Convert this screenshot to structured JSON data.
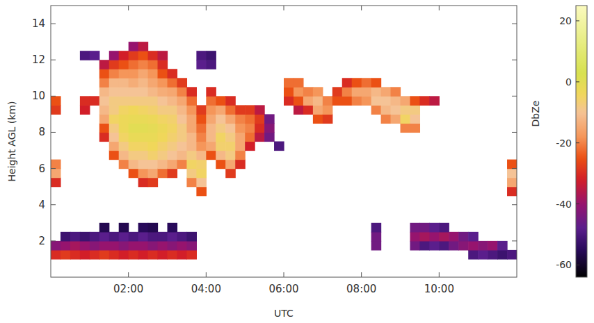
{
  "chart_data": {
    "type": "heatmap",
    "x_label": "UTC",
    "y_label": "Height AGL (km)",
    "xlim": [
      0,
      12
    ],
    "xticks": [
      {
        "value": 2,
        "label": "02:00"
      },
      {
        "value": 4,
        "label": "04:00"
      },
      {
        "value": 6,
        "label": "06:00"
      },
      {
        "value": 8,
        "label": "08:00"
      },
      {
        "value": 10,
        "label": "10:00"
      }
    ],
    "ylim": [
      0,
      15
    ],
    "yticks": [
      2,
      4,
      6,
      8,
      10,
      12,
      14
    ],
    "colorbar": {
      "label": "DbZe",
      "range": [
        -64,
        25
      ],
      "ticks": [
        20,
        0,
        -20,
        -40,
        -60
      ]
    },
    "cells": [
      [
        0.125,
        1.25,
        -30
      ],
      [
        0.125,
        1.75,
        -42
      ],
      [
        0.125,
        5.25,
        -30
      ],
      [
        0.125,
        5.75,
        -15
      ],
      [
        0.125,
        6.25,
        -20
      ],
      [
        0.125,
        9.25,
        -28
      ],
      [
        0.125,
        9.75,
        -25
      ],
      [
        0.375,
        1.25,
        -28
      ],
      [
        0.375,
        1.75,
        -40
      ],
      [
        0.375,
        2.25,
        -52
      ],
      [
        0.625,
        1.25,
        -30
      ],
      [
        0.625,
        1.75,
        -38
      ],
      [
        0.625,
        2.25,
        -50
      ],
      [
        0.875,
        1.25,
        -32
      ],
      [
        0.875,
        1.75,
        -40
      ],
      [
        0.875,
        2.25,
        -52
      ],
      [
        0.875,
        9.25,
        -32
      ],
      [
        0.875,
        9.75,
        -30
      ],
      [
        0.875,
        12.25,
        -50
      ],
      [
        1.125,
        1.25,
        -30
      ],
      [
        1.125,
        1.75,
        -42
      ],
      [
        1.125,
        2.25,
        -50
      ],
      [
        1.125,
        9.75,
        -30
      ],
      [
        1.125,
        12.25,
        -48
      ],
      [
        1.375,
        1.25,
        -28
      ],
      [
        1.375,
        1.75,
        -40
      ],
      [
        1.375,
        2.25,
        -48
      ],
      [
        1.375,
        2.75,
        -56
      ],
      [
        1.375,
        7.75,
        -30
      ],
      [
        1.375,
        8.25,
        -25
      ],
      [
        1.375,
        8.75,
        -15
      ],
      [
        1.375,
        9.25,
        -12
      ],
      [
        1.375,
        9.75,
        -10
      ],
      [
        1.375,
        10.25,
        -12
      ],
      [
        1.375,
        10.75,
        -20
      ],
      [
        1.375,
        11.25,
        -25
      ],
      [
        1.375,
        11.75,
        -35
      ],
      [
        1.625,
        1.25,
        -30
      ],
      [
        1.625,
        1.75,
        -40
      ],
      [
        1.625,
        2.25,
        -50
      ],
      [
        1.625,
        6.75,
        -25
      ],
      [
        1.625,
        7.25,
        -15
      ],
      [
        1.625,
        7.75,
        -10
      ],
      [
        1.625,
        8.25,
        -8
      ],
      [
        1.625,
        8.75,
        -5
      ],
      [
        1.625,
        9.25,
        -8
      ],
      [
        1.625,
        9.75,
        -8
      ],
      [
        1.625,
        10.25,
        -10
      ],
      [
        1.625,
        10.75,
        -12
      ],
      [
        1.625,
        11.25,
        -20
      ],
      [
        1.625,
        11.75,
        -28
      ],
      [
        1.625,
        12.25,
        -40
      ],
      [
        1.875,
        1.25,
        -32
      ],
      [
        1.875,
        1.75,
        -42
      ],
      [
        1.875,
        2.25,
        -48
      ],
      [
        1.875,
        2.75,
        -56
      ],
      [
        1.875,
        6.25,
        -20
      ],
      [
        1.875,
        6.75,
        -12
      ],
      [
        1.875,
        7.25,
        -8
      ],
      [
        1.875,
        7.75,
        -5
      ],
      [
        1.875,
        8.25,
        -3
      ],
      [
        1.875,
        8.75,
        -3
      ],
      [
        1.875,
        9.25,
        -5
      ],
      [
        1.875,
        9.75,
        -8
      ],
      [
        1.875,
        10.25,
        -10
      ],
      [
        1.875,
        10.75,
        -12
      ],
      [
        1.875,
        11.25,
        -18
      ],
      [
        1.875,
        11.75,
        -25
      ],
      [
        1.875,
        12.25,
        -32
      ],
      [
        2.125,
        1.25,
        -30
      ],
      [
        2.125,
        1.75,
        -40
      ],
      [
        2.125,
        2.25,
        -50
      ],
      [
        2.125,
        5.75,
        -25
      ],
      [
        2.125,
        6.25,
        -12
      ],
      [
        2.125,
        6.75,
        -8
      ],
      [
        2.125,
        7.25,
        -5
      ],
      [
        2.125,
        7.75,
        -2
      ],
      [
        2.125,
        8.25,
        0
      ],
      [
        2.125,
        8.75,
        -2
      ],
      [
        2.125,
        9.25,
        -4
      ],
      [
        2.125,
        9.75,
        -8
      ],
      [
        2.125,
        10.25,
        -10
      ],
      [
        2.125,
        10.75,
        -14
      ],
      [
        2.125,
        11.25,
        -18
      ],
      [
        2.125,
        11.75,
        -22
      ],
      [
        2.125,
        12.25,
        -28
      ],
      [
        2.125,
        12.75,
        -40
      ],
      [
        2.375,
        1.25,
        -32
      ],
      [
        2.375,
        1.75,
        -40
      ],
      [
        2.375,
        2.25,
        -48
      ],
      [
        2.375,
        2.75,
        -55
      ],
      [
        2.375,
        5.25,
        -30
      ],
      [
        2.375,
        5.75,
        -18
      ],
      [
        2.375,
        6.25,
        -10
      ],
      [
        2.375,
        6.75,
        -8
      ],
      [
        2.375,
        7.25,
        -5
      ],
      [
        2.375,
        7.75,
        -2
      ],
      [
        2.375,
        8.25,
        0
      ],
      [
        2.375,
        8.75,
        -2
      ],
      [
        2.375,
        9.25,
        -5
      ],
      [
        2.375,
        9.75,
        -8
      ],
      [
        2.375,
        10.25,
        -10
      ],
      [
        2.375,
        10.75,
        -12
      ],
      [
        2.375,
        11.25,
        -15
      ],
      [
        2.375,
        11.75,
        -20
      ],
      [
        2.375,
        12.25,
        -25
      ],
      [
        2.375,
        12.75,
        -35
      ],
      [
        2.625,
        1.25,
        -30
      ],
      [
        2.625,
        1.75,
        -42
      ],
      [
        2.625,
        2.25,
        -50
      ],
      [
        2.625,
        2.75,
        -56
      ],
      [
        2.625,
        5.25,
        -28
      ],
      [
        2.625,
        5.75,
        -15
      ],
      [
        2.625,
        6.25,
        -10
      ],
      [
        2.625,
        6.75,
        -6
      ],
      [
        2.625,
        7.25,
        -4
      ],
      [
        2.625,
        7.75,
        -2
      ],
      [
        2.625,
        8.25,
        -1
      ],
      [
        2.625,
        8.75,
        -3
      ],
      [
        2.625,
        9.25,
        -6
      ],
      [
        2.625,
        9.75,
        -8
      ],
      [
        2.625,
        10.25,
        -12
      ],
      [
        2.625,
        10.75,
        -15
      ],
      [
        2.625,
        11.25,
        -18
      ],
      [
        2.625,
        11.75,
        -22
      ],
      [
        2.625,
        12.25,
        -30
      ],
      [
        2.875,
        1.25,
        -32
      ],
      [
        2.875,
        1.75,
        -40
      ],
      [
        2.875,
        2.25,
        -50
      ],
      [
        2.875,
        5.75,
        -22
      ],
      [
        2.875,
        6.25,
        -12
      ],
      [
        2.875,
        6.75,
        -8
      ],
      [
        2.875,
        7.25,
        -6
      ],
      [
        2.875,
        7.75,
        -4
      ],
      [
        2.875,
        8.25,
        -3
      ],
      [
        2.875,
        8.75,
        -5
      ],
      [
        2.875,
        9.25,
        -8
      ],
      [
        2.875,
        9.75,
        -10
      ],
      [
        2.875,
        10.25,
        -14
      ],
      [
        2.875,
        10.75,
        -18
      ],
      [
        2.875,
        11.25,
        -25
      ],
      [
        2.875,
        11.75,
        -30
      ],
      [
        2.875,
        12.25,
        -35
      ],
      [
        3.125,
        1.25,
        -30
      ],
      [
        3.125,
        1.75,
        -42
      ],
      [
        3.125,
        2.25,
        -48
      ],
      [
        3.125,
        2.75,
        -55
      ],
      [
        3.125,
        5.75,
        -28
      ],
      [
        3.125,
        6.25,
        -15
      ],
      [
        3.125,
        6.75,
        -10
      ],
      [
        3.125,
        7.25,
        -8
      ],
      [
        3.125,
        7.75,
        -6
      ],
      [
        3.125,
        8.25,
        -5
      ],
      [
        3.125,
        8.75,
        -6
      ],
      [
        3.125,
        9.25,
        -8
      ],
      [
        3.125,
        9.75,
        -12
      ],
      [
        3.125,
        10.25,
        -15
      ],
      [
        3.125,
        10.75,
        -22
      ],
      [
        3.125,
        11.25,
        -30
      ],
      [
        3.375,
        1.25,
        -32
      ],
      [
        3.375,
        1.75,
        -40
      ],
      [
        3.375,
        2.25,
        -50
      ],
      [
        3.375,
        6.25,
        -20
      ],
      [
        3.375,
        6.75,
        -12
      ],
      [
        3.375,
        7.25,
        -10
      ],
      [
        3.375,
        7.75,
        -8
      ],
      [
        3.375,
        8.25,
        -8
      ],
      [
        3.375,
        8.75,
        -10
      ],
      [
        3.375,
        9.25,
        -12
      ],
      [
        3.375,
        9.75,
        -15
      ],
      [
        3.375,
        10.25,
        -20
      ],
      [
        3.375,
        10.75,
        -28
      ],
      [
        3.625,
        1.25,
        -30
      ],
      [
        3.625,
        1.75,
        -42
      ],
      [
        3.625,
        2.25,
        -52
      ],
      [
        3.625,
        5.25,
        -20
      ],
      [
        3.625,
        5.75,
        -8
      ],
      [
        3.625,
        6.25,
        -5
      ],
      [
        3.625,
        6.75,
        -8
      ],
      [
        3.625,
        7.25,
        -12
      ],
      [
        3.625,
        7.75,
        -12
      ],
      [
        3.625,
        8.25,
        -15
      ],
      [
        3.625,
        8.75,
        -15
      ],
      [
        3.625,
        9.25,
        -18
      ],
      [
        3.625,
        9.75,
        -22
      ],
      [
        3.625,
        10.25,
        -30
      ],
      [
        3.875,
        4.75,
        -25
      ],
      [
        3.875,
        5.25,
        -10
      ],
      [
        3.875,
        5.75,
        -5
      ],
      [
        3.875,
        6.25,
        -6
      ],
      [
        3.875,
        6.75,
        -12
      ],
      [
        3.875,
        7.25,
        -18
      ],
      [
        3.875,
        7.75,
        -20
      ],
      [
        3.875,
        8.25,
        -22
      ],
      [
        3.875,
        8.75,
        -25
      ],
      [
        3.875,
        9.25,
        -28
      ],
      [
        3.875,
        11.75,
        -48
      ],
      [
        3.875,
        12.25,
        -50
      ],
      [
        4.125,
        6.75,
        -25
      ],
      [
        4.125,
        7.25,
        -15
      ],
      [
        4.125,
        7.75,
        -12
      ],
      [
        4.125,
        8.25,
        -12
      ],
      [
        4.125,
        8.75,
        -15
      ],
      [
        4.125,
        9.25,
        -18
      ],
      [
        4.125,
        9.75,
        -22
      ],
      [
        4.125,
        10.25,
        -30
      ],
      [
        4.125,
        11.75,
        -50
      ],
      [
        4.125,
        12.25,
        -52
      ],
      [
        4.375,
        6.25,
        -25
      ],
      [
        4.375,
        6.75,
        -12
      ],
      [
        4.375,
        7.25,
        -6
      ],
      [
        4.375,
        7.75,
        -5
      ],
      [
        4.375,
        8.25,
        -8
      ],
      [
        4.375,
        8.75,
        -10
      ],
      [
        4.375,
        9.25,
        -15
      ],
      [
        4.375,
        9.75,
        -25
      ],
      [
        4.625,
        5.75,
        -28
      ],
      [
        4.625,
        6.25,
        -15
      ],
      [
        4.625,
        6.75,
        -8
      ],
      [
        4.625,
        7.25,
        -6
      ],
      [
        4.625,
        7.75,
        -8
      ],
      [
        4.625,
        8.25,
        -10
      ],
      [
        4.625,
        8.75,
        -15
      ],
      [
        4.625,
        9.25,
        -22
      ],
      [
        4.625,
        9.75,
        -30
      ],
      [
        4.875,
        6.25,
        -30
      ],
      [
        4.875,
        6.75,
        -20
      ],
      [
        4.875,
        7.25,
        -15
      ],
      [
        4.875,
        7.75,
        -15
      ],
      [
        4.875,
        8.25,
        -18
      ],
      [
        4.875,
        8.75,
        -20
      ],
      [
        4.875,
        9.25,
        -28
      ],
      [
        5.125,
        7.25,
        -32
      ],
      [
        5.125,
        7.75,
        -22
      ],
      [
        5.125,
        8.25,
        -20
      ],
      [
        5.125,
        8.75,
        -22
      ],
      [
        5.125,
        9.25,
        -28
      ],
      [
        5.375,
        7.75,
        -35
      ],
      [
        5.375,
        8.25,
        -30
      ],
      [
        5.375,
        8.75,
        -28
      ],
      [
        5.375,
        9.25,
        -35
      ],
      [
        5.625,
        7.75,
        -45
      ],
      [
        5.625,
        8.25,
        -42
      ],
      [
        5.625,
        8.75,
        -45
      ],
      [
        5.875,
        7.25,
        -50
      ],
      [
        6.125,
        9.75,
        -30
      ],
      [
        6.125,
        10.25,
        -25
      ],
      [
        6.125,
        10.75,
        -22
      ],
      [
        6.375,
        9.25,
        -35
      ],
      [
        6.375,
        9.75,
        -25
      ],
      [
        6.375,
        10.25,
        -18
      ],
      [
        6.375,
        10.75,
        -22
      ],
      [
        6.625,
        9.25,
        -30
      ],
      [
        6.625,
        9.75,
        -15
      ],
      [
        6.625,
        10.25,
        -20
      ],
      [
        6.875,
        8.75,
        -25
      ],
      [
        6.875,
        9.25,
        -15
      ],
      [
        6.875,
        9.75,
        -12
      ],
      [
        6.875,
        10.25,
        -18
      ],
      [
        7.125,
        8.75,
        -28
      ],
      [
        7.125,
        9.25,
        -18
      ],
      [
        7.125,
        9.75,
        -20
      ],
      [
        7.375,
        9.75,
        -25
      ],
      [
        7.375,
        10.25,
        -28
      ],
      [
        7.625,
        9.75,
        -25
      ],
      [
        7.625,
        10.25,
        -20
      ],
      [
        7.625,
        10.75,
        -30
      ],
      [
        7.875,
        9.75,
        -20
      ],
      [
        7.875,
        10.25,
        -15
      ],
      [
        7.875,
        10.75,
        -25
      ],
      [
        8.125,
        9.75,
        -18
      ],
      [
        8.125,
        10.25,
        -15
      ],
      [
        8.125,
        10.75,
        -22
      ],
      [
        8.375,
        1.75,
        -45
      ],
      [
        8.375,
        2.25,
        -45
      ],
      [
        8.375,
        2.75,
        -50
      ],
      [
        8.375,
        9.25,
        -20
      ],
      [
        8.375,
        9.75,
        -10
      ],
      [
        8.375,
        10.25,
        -12
      ],
      [
        8.375,
        10.75,
        -25
      ],
      [
        8.625,
        8.75,
        -20
      ],
      [
        8.625,
        9.25,
        -12
      ],
      [
        8.625,
        9.75,
        -10
      ],
      [
        8.625,
        10.25,
        -15
      ],
      [
        8.875,
        8.75,
        -15
      ],
      [
        8.875,
        9.25,
        -10
      ],
      [
        8.875,
        9.75,
        -12
      ],
      [
        8.875,
        10.25,
        -20
      ],
      [
        9.125,
        8.25,
        -20
      ],
      [
        9.125,
        8.75,
        -5
      ],
      [
        9.125,
        9.25,
        -8
      ],
      [
        9.125,
        9.75,
        -15
      ],
      [
        9.375,
        1.75,
        -45
      ],
      [
        9.375,
        2.25,
        -40
      ],
      [
        9.375,
        2.75,
        -45
      ],
      [
        9.375,
        8.25,
        -20
      ],
      [
        9.375,
        8.75,
        -10
      ],
      [
        9.375,
        9.25,
        -8
      ],
      [
        9.375,
        9.75,
        -25
      ],
      [
        9.625,
        1.75,
        -50
      ],
      [
        9.625,
        2.25,
        -38
      ],
      [
        9.625,
        2.75,
        -45
      ],
      [
        9.625,
        9.75,
        -30
      ],
      [
        9.875,
        1.75,
        -48
      ],
      [
        9.875,
        2.25,
        -40
      ],
      [
        9.875,
        2.75,
        -48
      ],
      [
        9.875,
        9.75,
        -35
      ],
      [
        10.125,
        1.75,
        -50
      ],
      [
        10.125,
        2.25,
        -38
      ],
      [
        10.125,
        2.75,
        -50
      ],
      [
        10.375,
        1.75,
        -45
      ],
      [
        10.375,
        2.25,
        -40
      ],
      [
        10.625,
        1.75,
        -42
      ],
      [
        10.625,
        2.25,
        -45
      ],
      [
        10.875,
        1.25,
        -50
      ],
      [
        10.875,
        1.75,
        -40
      ],
      [
        10.875,
        2.25,
        -48
      ],
      [
        11.125,
        1.25,
        -48
      ],
      [
        11.125,
        1.75,
        -42
      ],
      [
        11.375,
        1.25,
        -50
      ],
      [
        11.375,
        1.75,
        -40
      ],
      [
        11.625,
        1.25,
        -52
      ],
      [
        11.625,
        1.75,
        -48
      ],
      [
        11.875,
        1.25,
        -50
      ],
      [
        11.875,
        4.75,
        -30
      ],
      [
        11.875,
        5.25,
        -15
      ],
      [
        11.875,
        5.75,
        -10
      ],
      [
        11.875,
        6.25,
        -25
      ]
    ]
  }
}
